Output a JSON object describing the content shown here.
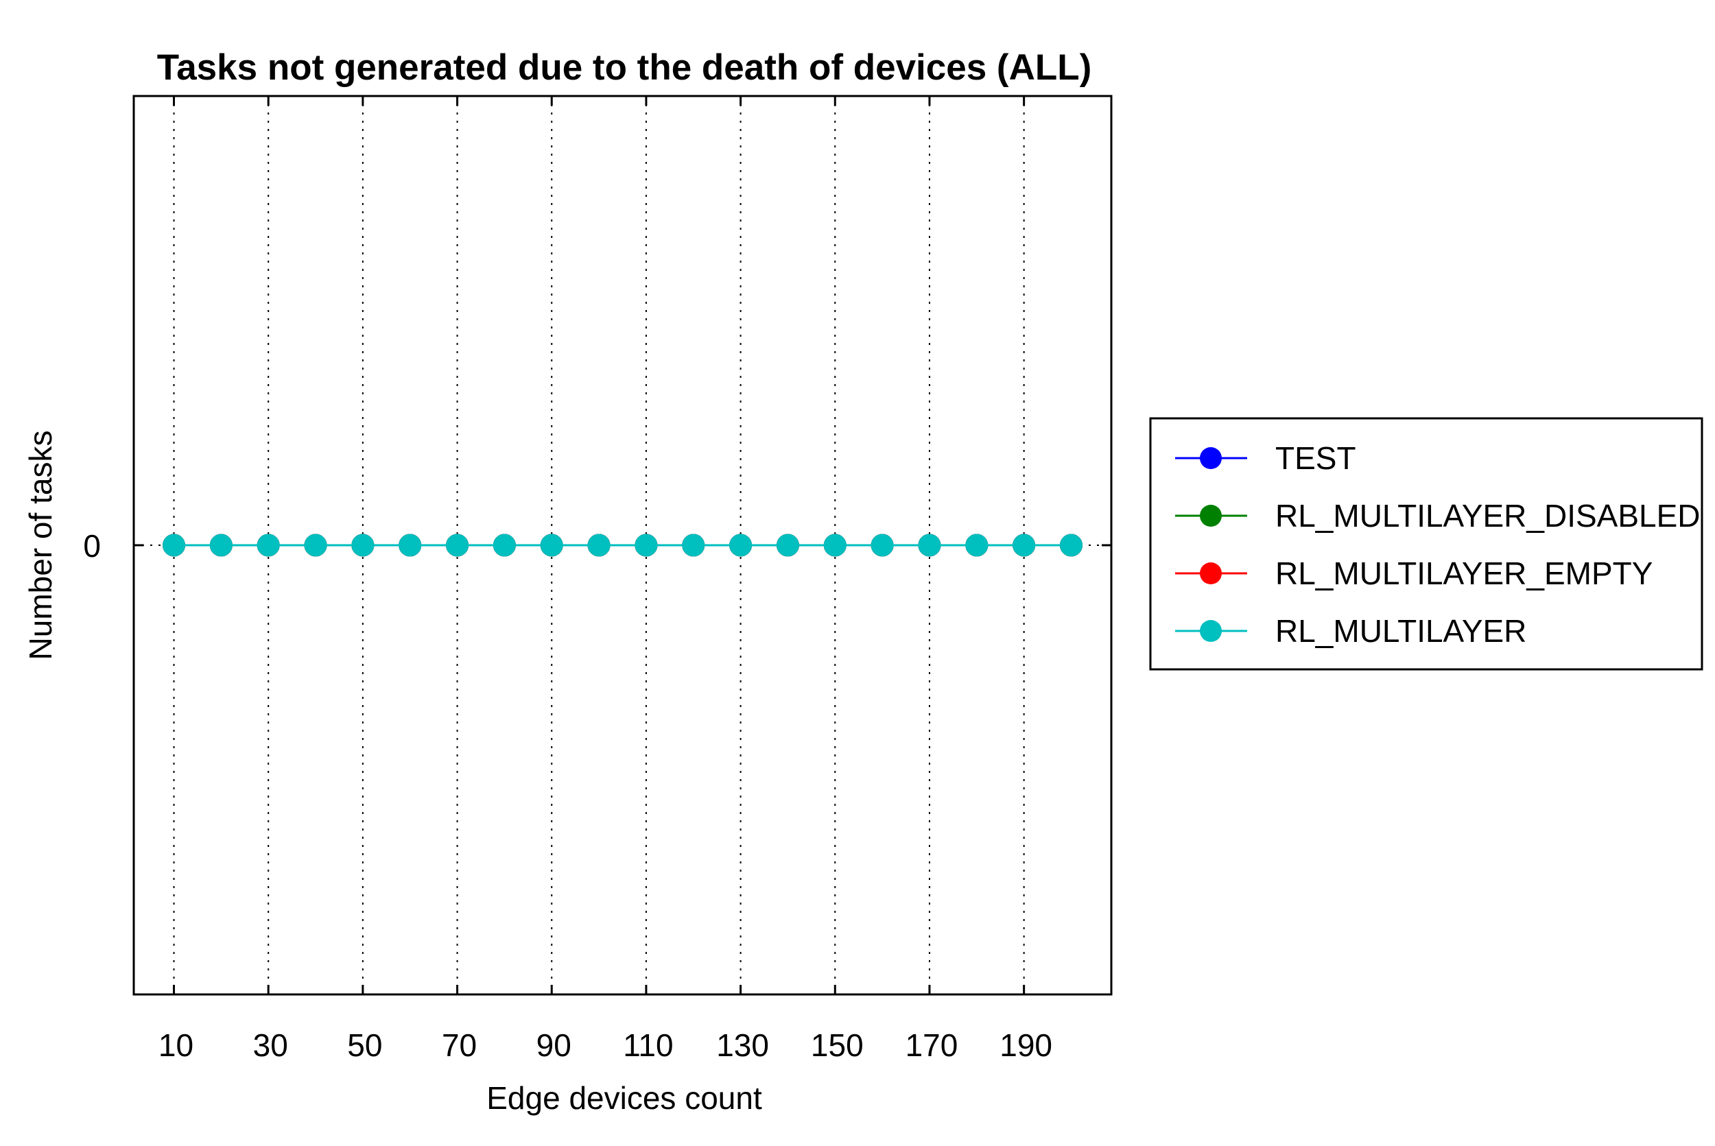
{
  "chart_data": {
    "type": "line",
    "title": "Tasks not generated due to the death of devices (ALL)",
    "xlabel": "Edge devices count",
    "ylabel": "Number of tasks",
    "x": [
      10,
      20,
      30,
      40,
      50,
      60,
      70,
      80,
      90,
      100,
      110,
      120,
      130,
      140,
      150,
      160,
      170,
      180,
      190,
      200
    ],
    "x_ticks": [
      10,
      30,
      50,
      70,
      90,
      110,
      130,
      150,
      170,
      190
    ],
    "y_ticks": [
      0
    ],
    "xlim": [
      1.5,
      208.5
    ],
    "ylim": [
      -1,
      1
    ],
    "grid": true,
    "legend_location": "outside-right",
    "series": [
      {
        "name": "TEST",
        "color": "#0000ff",
        "values": [
          0,
          0,
          0,
          0,
          0,
          0,
          0,
          0,
          0,
          0,
          0,
          0,
          0,
          0,
          0,
          0,
          0,
          0,
          0,
          0
        ]
      },
      {
        "name": "RL_MULTILAYER_DISABLED",
        "color": "#008000",
        "values": [
          0,
          0,
          0,
          0,
          0,
          0,
          0,
          0,
          0,
          0,
          0,
          0,
          0,
          0,
          0,
          0,
          0,
          0,
          0,
          0
        ]
      },
      {
        "name": "RL_MULTILAYER_EMPTY",
        "color": "#ff0000",
        "values": [
          0,
          0,
          0,
          0,
          0,
          0,
          0,
          0,
          0,
          0,
          0,
          0,
          0,
          0,
          0,
          0,
          0,
          0,
          0,
          0
        ]
      },
      {
        "name": "RL_MULTILAYER",
        "color": "#00bfbf",
        "values": [
          0,
          0,
          0,
          0,
          0,
          0,
          0,
          0,
          0,
          0,
          0,
          0,
          0,
          0,
          0,
          0,
          0,
          0,
          0,
          0
        ]
      }
    ]
  }
}
